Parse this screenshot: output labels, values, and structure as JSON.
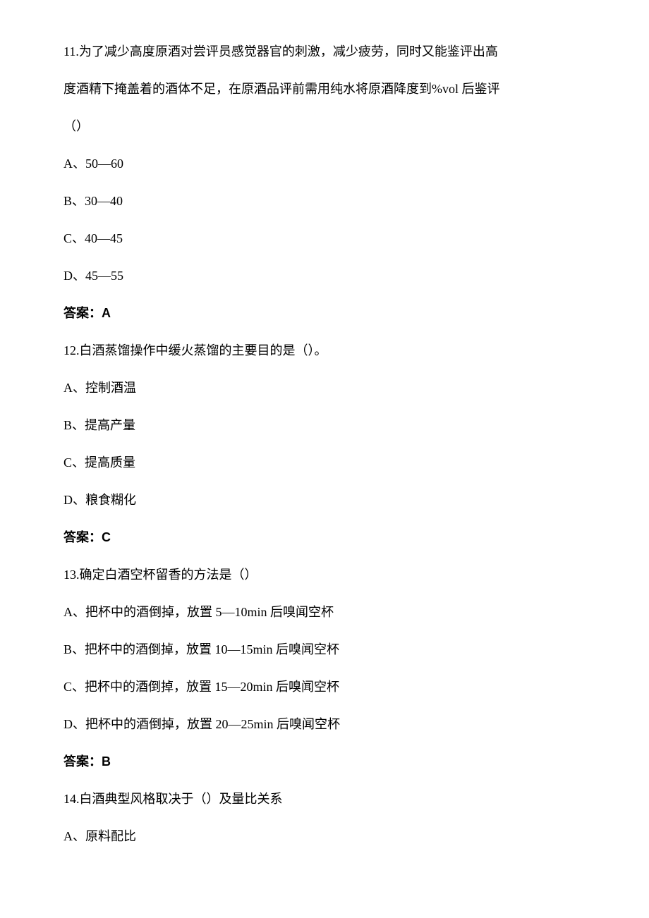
{
  "q11": {
    "stem_a": "11.为了减少高度原酒对尝评员感觉器官的刺激，减少疲劳，同时又能鉴评出高",
    "stem_b": "度酒精下掩盖着的酒体不足，在原酒品评前需用纯水将原酒降度到%vol 后鉴评",
    "stem_c": "（）",
    "opt_a": "A、50—60",
    "opt_b": "B、30—40",
    "opt_c": "C、40—45",
    "opt_d": "D、45—55",
    "answer": "答案：A"
  },
  "q12": {
    "stem": "12.白酒蒸馏操作中缓火蒸馏的主要目的是（）。",
    "opt_a": "A、控制酒温",
    "opt_b": "B、提高产量",
    "opt_c": "C、提高质量",
    "opt_d": "D、粮食糊化",
    "answer": "答案：C"
  },
  "q13": {
    "stem": "13.确定白酒空杯留香的方法是（）",
    "opt_a": "A、把杯中的酒倒掉，放置 5—10min 后嗅闻空杯",
    "opt_b": "B、把杯中的酒倒掉，放置 10—15min 后嗅闻空杯",
    "opt_c": "C、把杯中的酒倒掉，放置 15—20min 后嗅闻空杯",
    "opt_d": "D、把杯中的酒倒掉，放置 20—25min 后嗅闻空杯",
    "answer": "答案：B"
  },
  "q14": {
    "stem": "14.白酒典型风格取决于（）及量比关系",
    "opt_a": "A、原料配比"
  }
}
